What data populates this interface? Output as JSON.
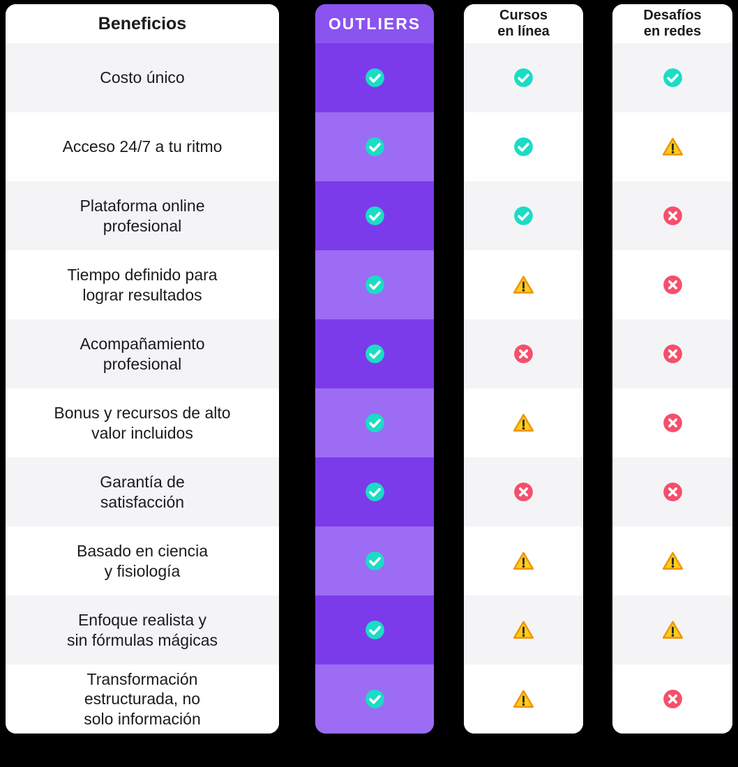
{
  "columns": {
    "benefits": {
      "header": "Beneficios"
    },
    "outliers": {
      "header": "OUTLIERS"
    },
    "courses": {
      "header_line1": "Cursos",
      "header_line2": "en línea"
    },
    "challenges": {
      "header_line1": "Desafíos",
      "header_line2": "en redes"
    }
  },
  "icons": {
    "check": "check-circle-icon",
    "warning": "warning-triangle-icon",
    "cross": "cross-circle-icon"
  },
  "colors": {
    "background": "#000000",
    "purple_header": "#8B53F0",
    "purple_dark": "#7B3BEA",
    "purple_light": "#9C6CF4",
    "check": "#1BDCC6",
    "cross": "#F54F6B",
    "warning_fill": "#FFCD1A",
    "warning_border": "#F0960B",
    "row_shade": "#F4F4F6",
    "text": "#1B1B1D"
  },
  "rows": [
    {
      "benefit_lines": [
        "Costo único"
      ],
      "outliers": "check",
      "courses": "check",
      "challenges": "check"
    },
    {
      "benefit_lines": [
        "Acceso 24/7 a tu ritmo"
      ],
      "outliers": "check",
      "courses": "check",
      "challenges": "warning"
    },
    {
      "benefit_lines": [
        "Plataforma online",
        "profesional"
      ],
      "outliers": "check",
      "courses": "check",
      "challenges": "cross"
    },
    {
      "benefit_lines": [
        "Tiempo definido para",
        "lograr resultados"
      ],
      "outliers": "check",
      "courses": "warning",
      "challenges": "cross"
    },
    {
      "benefit_lines": [
        "Acompañamiento",
        "profesional"
      ],
      "outliers": "check",
      "courses": "cross",
      "challenges": "cross"
    },
    {
      "benefit_lines": [
        "Bonus y recursos de alto",
        "valor incluidos"
      ],
      "outliers": "check",
      "courses": "warning",
      "challenges": "cross"
    },
    {
      "benefit_lines": [
        "Garantía de",
        "satisfacción"
      ],
      "outliers": "check",
      "courses": "cross",
      "challenges": "cross"
    },
    {
      "benefit_lines": [
        "Basado en ciencia",
        "y fisiología"
      ],
      "outliers": "check",
      "courses": "warning",
      "challenges": "warning"
    },
    {
      "benefit_lines": [
        "Enfoque realista y",
        "sin fórmulas mágicas"
      ],
      "outliers": "check",
      "courses": "warning",
      "challenges": "warning"
    },
    {
      "benefit_lines": [
        "Transformación",
        "estructurada, no",
        "solo información"
      ],
      "outliers": "check",
      "courses": "warning",
      "challenges": "cross"
    }
  ],
  "chart_data": {
    "type": "table",
    "columns": [
      "Beneficios",
      "OUTLIERS",
      "Cursos en línea",
      "Desafíos en redes"
    ],
    "rows": [
      [
        "Costo único",
        "check",
        "check",
        "check"
      ],
      [
        "Acceso 24/7 a tu ritmo",
        "check",
        "check",
        "warning"
      ],
      [
        "Plataforma online profesional",
        "check",
        "check",
        "cross"
      ],
      [
        "Tiempo definido para lograr resultados",
        "check",
        "warning",
        "cross"
      ],
      [
        "Acompañamiento profesional",
        "check",
        "cross",
        "cross"
      ],
      [
        "Bonus y recursos de alto valor incluidos",
        "check",
        "warning",
        "cross"
      ],
      [
        "Garantía de satisfacción",
        "check",
        "cross",
        "cross"
      ],
      [
        "Basado en ciencia y fisiología",
        "check",
        "warning",
        "warning"
      ],
      [
        "Enfoque realista y sin fórmulas mágicas",
        "check",
        "warning",
        "warning"
      ],
      [
        "Transformación estructurada, no solo información",
        "check",
        "warning",
        "cross"
      ]
    ]
  }
}
